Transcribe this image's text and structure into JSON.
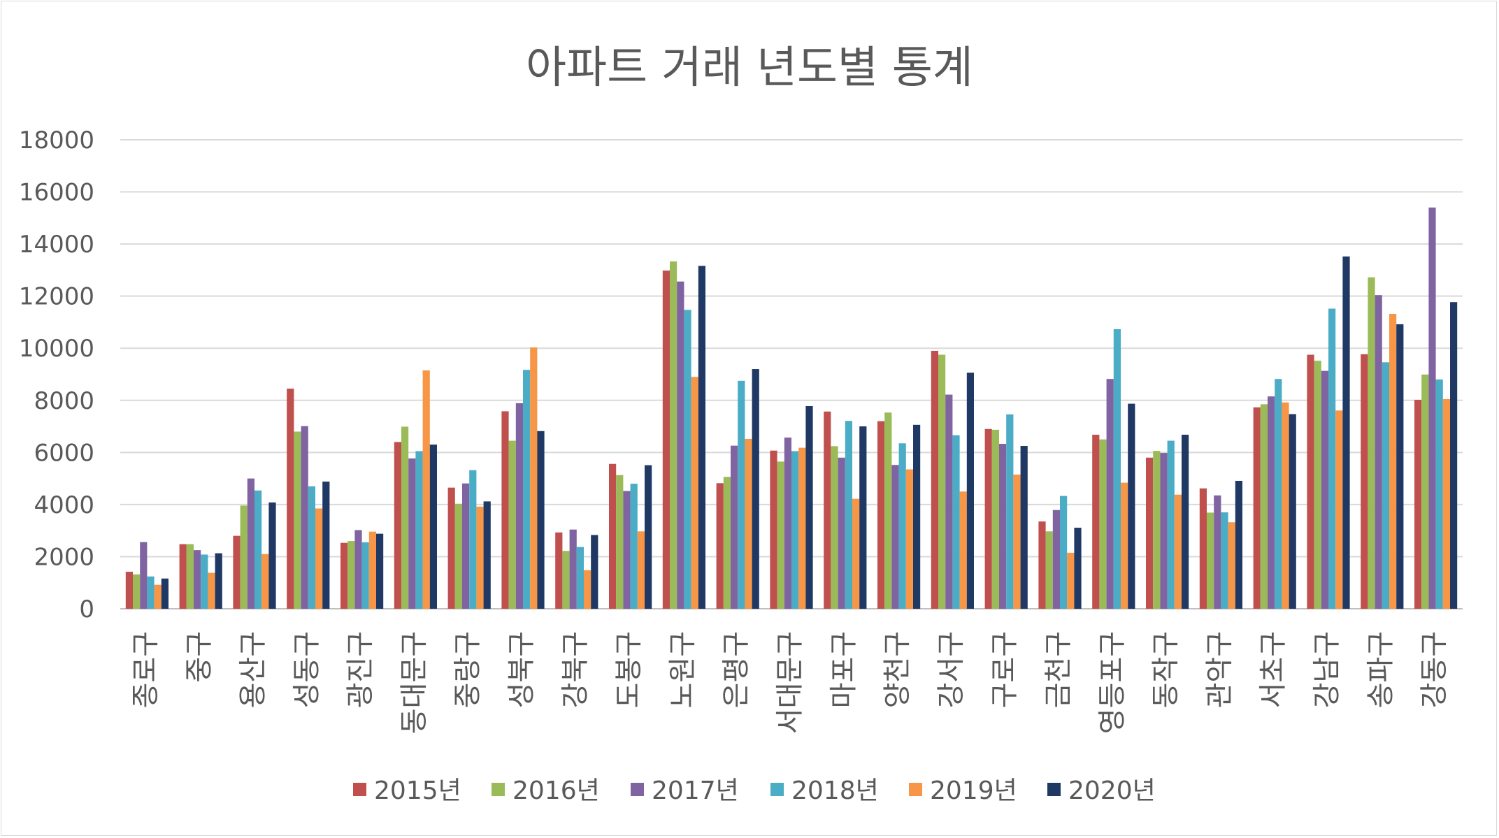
{
  "chart_data": {
    "type": "bar",
    "title": "아파트 거래 년도별 통계",
    "xlabel": "",
    "ylabel": "",
    "ylim": [
      0,
      18000
    ],
    "yticks": [
      0,
      2000,
      4000,
      6000,
      8000,
      10000,
      12000,
      14000,
      16000,
      18000
    ],
    "grid": true,
    "legend_position": "bottom",
    "categories": [
      "종로구",
      "중구",
      "용산구",
      "성동구",
      "광진구",
      "동대문구",
      "중랑구",
      "성북구",
      "강북구",
      "도봉구",
      "노원구",
      "은평구",
      "서대문구",
      "마포구",
      "양천구",
      "강서구",
      "구로구",
      "금천구",
      "영등포구",
      "동작구",
      "관악구",
      "서초구",
      "강남구",
      "송파구",
      "강동구"
    ],
    "series": [
      {
        "name": "2015년",
        "color": "#c0504d",
        "values": [
          1420,
          2480,
          2800,
          8450,
          2530,
          6400,
          4650,
          7580,
          2930,
          5560,
          12980,
          4820,
          6070,
          7570,
          7200,
          9900,
          6900,
          3350,
          6680,
          5800,
          4620,
          7730,
          9750,
          9770,
          8020
        ]
      },
      {
        "name": "2016년",
        "color": "#9bbb59",
        "values": [
          1320,
          2480,
          3960,
          6800,
          2600,
          6990,
          4030,
          6450,
          2220,
          5130,
          13330,
          5060,
          5650,
          6240,
          7530,
          9750,
          6870,
          2970,
          6500,
          6060,
          3690,
          7850,
          9520,
          12720,
          8990
        ]
      },
      {
        "name": "2017년",
        "color": "#8064a2",
        "values": [
          2560,
          2250,
          5000,
          7010,
          3020,
          5770,
          4810,
          7890,
          3040,
          4520,
          12560,
          6260,
          6570,
          5800,
          5520,
          8220,
          6330,
          3790,
          8820,
          5980,
          4350,
          8150,
          9130,
          12040,
          15400
        ]
      },
      {
        "name": "2018년",
        "color": "#4bacc6",
        "values": [
          1240,
          2080,
          4540,
          4700,
          2550,
          6050,
          5320,
          9170,
          2370,
          4800,
          11470,
          8750,
          6050,
          7210,
          6350,
          6660,
          7460,
          4330,
          10730,
          6450,
          3700,
          8820,
          11520,
          9460,
          8800
        ]
      },
      {
        "name": "2019년",
        "color": "#f79646",
        "values": [
          920,
          1380,
          2100,
          3850,
          2960,
          9150,
          3920,
          10030,
          1480,
          2970,
          8900,
          6520,
          6180,
          4220,
          5350,
          4500,
          5150,
          2150,
          4840,
          4380,
          3320,
          7920,
          7610,
          11320,
          8050
        ]
      },
      {
        "name": "2020년",
        "color": "#1f3864",
        "values": [
          1160,
          2130,
          4080,
          4880,
          2880,
          6300,
          4120,
          6820,
          2830,
          5510,
          13160,
          9200,
          7780,
          7000,
          7060,
          9060,
          6250,
          3110,
          7870,
          6680,
          4910,
          7470,
          13520,
          10920,
          11770
        ]
      }
    ]
  }
}
